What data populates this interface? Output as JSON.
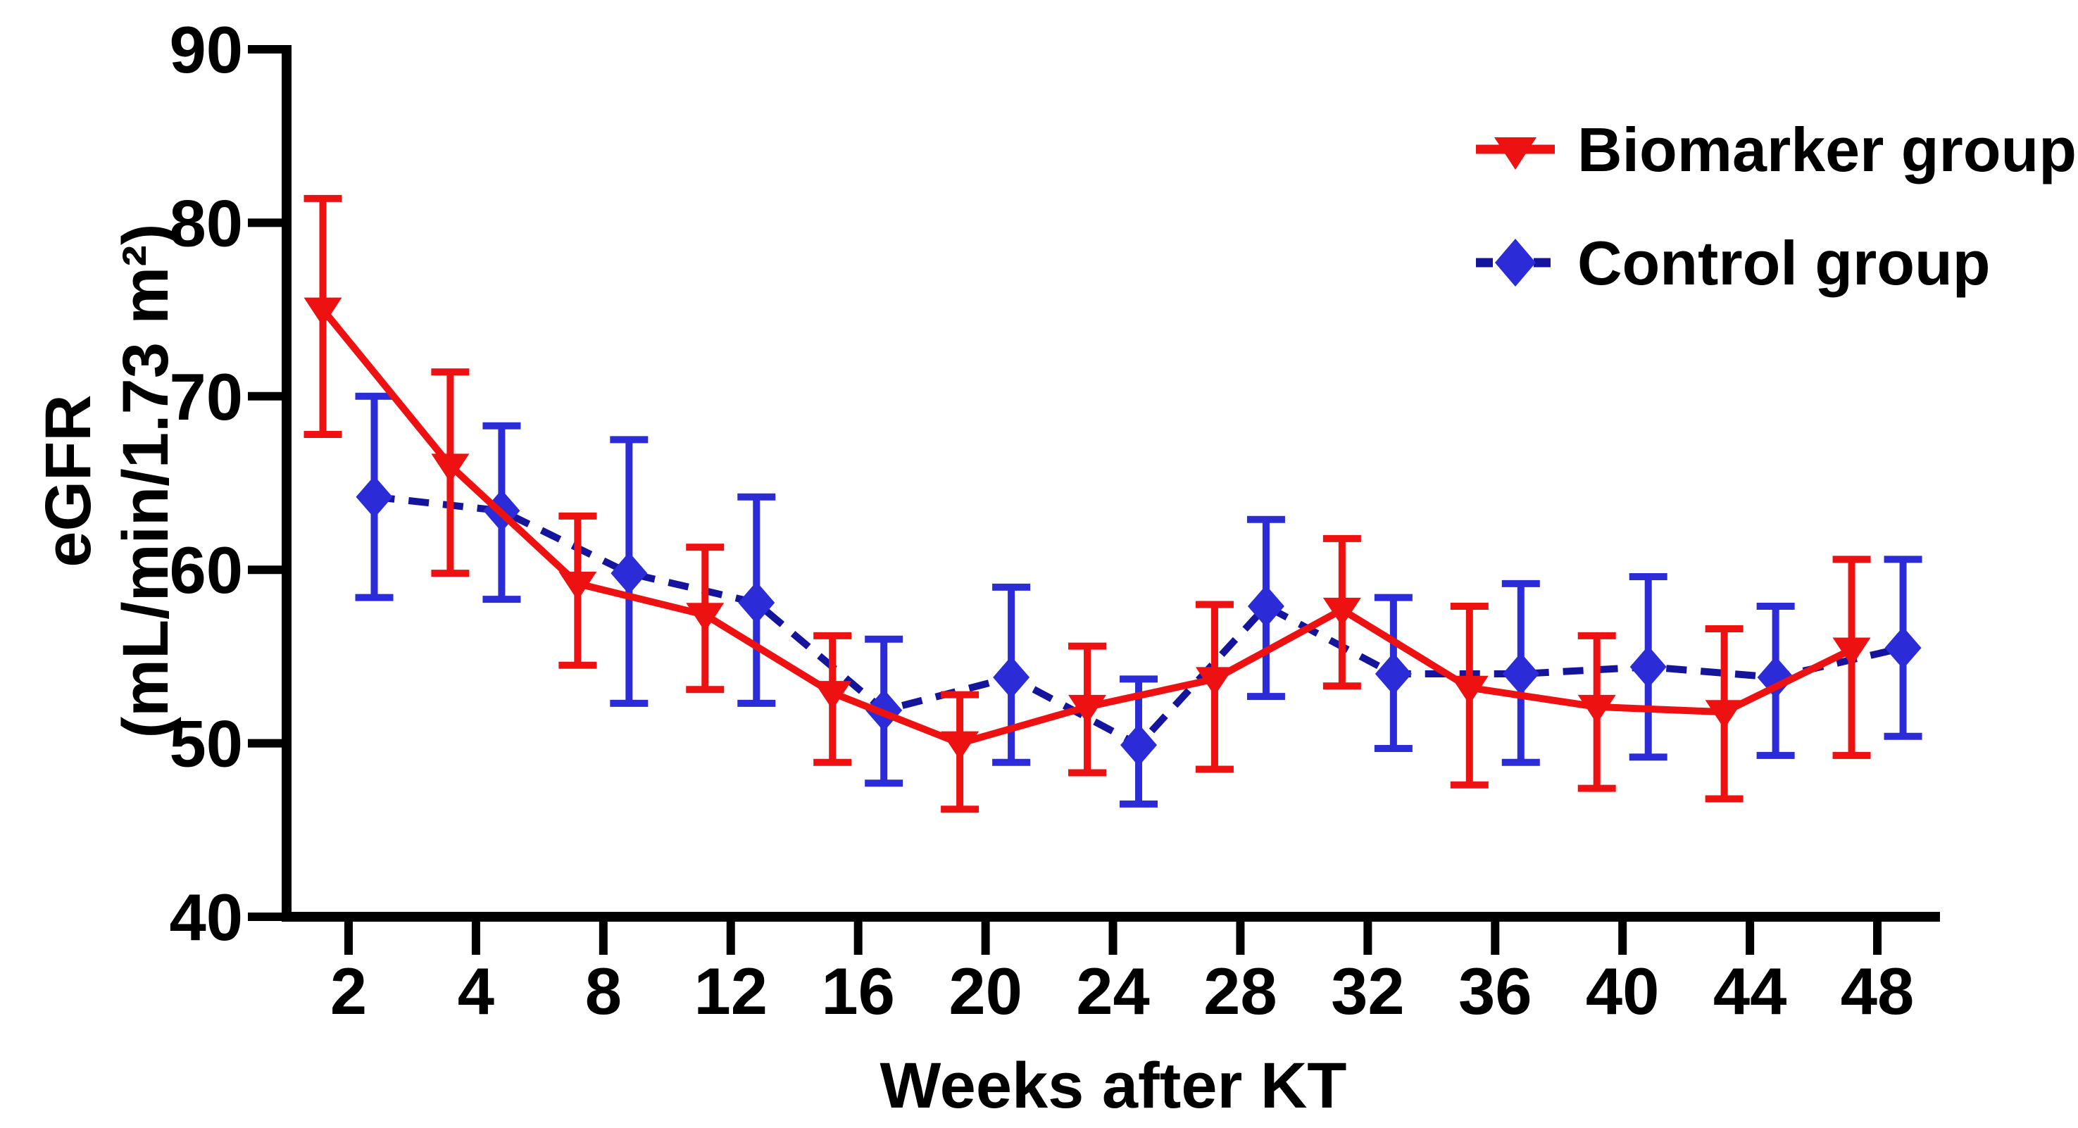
{
  "chart_data": {
    "type": "line",
    "title": "",
    "xlabel": "Weeks after KT",
    "ylabel_lines": [
      "eGFR",
      "(mL/min/1.73 m²)"
    ],
    "ylim": [
      40,
      90
    ],
    "yticks": [
      90,
      80,
      70,
      60,
      50,
      40
    ],
    "categories": [
      "2",
      "4",
      "8",
      "12",
      "16",
      "20",
      "24",
      "28",
      "32",
      "36",
      "40",
      "44",
      "48"
    ],
    "grid": false,
    "legend_position": "top-right",
    "axis_color": "#000000",
    "background_color": "#ffffff",
    "series": [
      {
        "name": "Biomarker group",
        "color": "#ee1111",
        "line_color": "#ee1111",
        "line_style": "solid",
        "marker": "triangle-down",
        "values": [
          75.0,
          66.0,
          59.2,
          57.4,
          52.9,
          50.0,
          52.1,
          53.7,
          57.7,
          53.2,
          52.1,
          51.8,
          55.4
        ],
        "err_low": [
          67.8,
          59.8,
          54.5,
          53.1,
          48.9,
          46.2,
          48.3,
          48.5,
          53.3,
          47.6,
          47.4,
          46.8,
          49.3
        ],
        "err_high": [
          81.4,
          71.4,
          63.1,
          61.3,
          56.2,
          52.8,
          55.6,
          58.0,
          61.8,
          57.9,
          56.2,
          56.6,
          60.6
        ]
      },
      {
        "name": "Control group",
        "color": "#2b2bd8",
        "line_color": "#14149c",
        "line_style": "dashed",
        "marker": "diamond",
        "values": [
          64.2,
          63.4,
          59.8,
          58.1,
          51.9,
          53.8,
          49.9,
          57.9,
          54.0,
          54.0,
          54.4,
          53.8,
          55.5
        ],
        "err_low": [
          58.4,
          58.3,
          52.3,
          52.3,
          47.7,
          48.9,
          46.5,
          52.7,
          49.7,
          48.9,
          49.2,
          49.3,
          50.4
        ],
        "err_high": [
          70.0,
          68.3,
          67.5,
          64.2,
          56.0,
          59.0,
          53.7,
          62.9,
          58.4,
          59.2,
          59.6,
          57.9,
          60.6
        ]
      }
    ]
  }
}
